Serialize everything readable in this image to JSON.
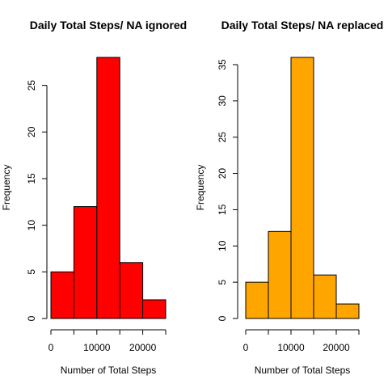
{
  "chart_data": [
    {
      "type": "bar",
      "subtype": "histogram",
      "title": "Daily Total Steps/ NA ignored",
      "xlabel": "Number of Total Steps",
      "ylabel": "Frequency",
      "bin_edges": [
        0,
        5000,
        10000,
        15000,
        20000,
        25000
      ],
      "values": [
        5,
        12,
        28,
        6,
        2
      ],
      "color": "#ff0000",
      "xlim": [
        0,
        25000
      ],
      "ylim": [
        0,
        28
      ],
      "xticks": [
        0,
        10000,
        20000
      ],
      "xtick_minor": [
        0,
        5000,
        10000,
        15000,
        20000,
        25000
      ],
      "yticks": [
        0,
        5,
        10,
        15,
        20,
        25
      ],
      "grid": false
    },
    {
      "type": "bar",
      "subtype": "histogram",
      "title": "Daily Total Steps/ NA replaced",
      "xlabel": "Number of Total Steps",
      "ylabel": "Frequency",
      "bin_edges": [
        0,
        5000,
        10000,
        15000,
        20000,
        25000
      ],
      "values": [
        5,
        12,
        36,
        6,
        2
      ],
      "color": "#ffa500",
      "xlim": [
        0,
        25000
      ],
      "ylim": [
        0,
        36
      ],
      "xticks": [
        0,
        10000,
        20000
      ],
      "xtick_minor": [
        0,
        5000,
        10000,
        15000,
        20000,
        25000
      ],
      "yticks": [
        0,
        5,
        10,
        15,
        20,
        25,
        30,
        35
      ],
      "grid": false
    }
  ]
}
